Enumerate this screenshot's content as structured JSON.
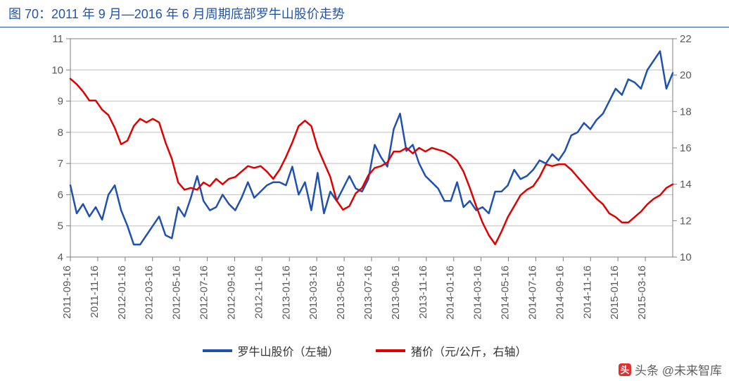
{
  "title_prefix": "图 70：",
  "title_main": "2011 年 9 月—2016 年 6 月周期底部罗牛山股价走势",
  "watermark": "头条 @未来智库",
  "chart": {
    "type": "line",
    "background_color": "#ffffff",
    "grid_color": "#bfbfbf",
    "axis_color": "#7f7f7f",
    "tick_font_size": 15,
    "tick_color": "#595959",
    "line_width": 2.5,
    "left_axis": {
      "min": 4,
      "max": 11,
      "ticks": [
        4,
        5,
        6,
        7,
        8,
        9,
        10,
        11
      ]
    },
    "right_axis": {
      "min": 10,
      "max": 22,
      "ticks": [
        10,
        12,
        14,
        16,
        18,
        20,
        22
      ]
    },
    "x_categories": [
      "2011-09-16",
      "2011-11-16",
      "2012-01-16",
      "2012-03-16",
      "2012-05-16",
      "2012-07-16",
      "2012-09-16",
      "2012-11-16",
      "2013-01-16",
      "2013-03-16",
      "2013-05-16",
      "2013-07-16",
      "2013-09-16",
      "2013-11-16",
      "2014-01-16",
      "2014-03-16",
      "2014-05-16",
      "2014-07-16",
      "2014-09-16",
      "2014-11-16",
      "2015-01-16",
      "2015-03-16"
    ],
    "series": [
      {
        "name": "罗牛山股价（左轴）",
        "axis": "left",
        "color": "#2050b0",
        "values": [
          6.3,
          5.4,
          5.7,
          5.3,
          5.6,
          5.2,
          6.0,
          6.3,
          5.5,
          5.0,
          4.4,
          4.4,
          4.7,
          5.0,
          5.3,
          4.7,
          4.6,
          5.6,
          5.3,
          5.9,
          6.6,
          5.8,
          5.5,
          5.6,
          6.0,
          5.7,
          5.5,
          5.9,
          6.4,
          5.9,
          6.1,
          6.3,
          6.4,
          6.4,
          6.3,
          6.9,
          6.0,
          6.4,
          5.5,
          6.7,
          5.4,
          6.1,
          5.8,
          6.2,
          6.6,
          6.2,
          6.1,
          6.5,
          7.6,
          7.2,
          6.9,
          8.1,
          8.6,
          7.4,
          7.6,
          7.0,
          6.6,
          6.4,
          6.2,
          5.8,
          5.8,
          6.4,
          5.6,
          5.8,
          5.5,
          5.6,
          5.4,
          6.1,
          6.1,
          6.3,
          6.8,
          6.5,
          6.6,
          6.8,
          7.1,
          7.0,
          7.3,
          7.1,
          7.4,
          7.9,
          8.0,
          8.3,
          8.1,
          8.4,
          8.6,
          9.0,
          9.4,
          9.2,
          9.7,
          9.6,
          9.4,
          10.0,
          10.3,
          10.6,
          9.4,
          9.9
        ]
      },
      {
        "name": "猪价（元/公斤，右轴）",
        "axis": "right",
        "color": "#e00000",
        "values": [
          19.8,
          19.5,
          19.1,
          18.6,
          18.6,
          18.1,
          17.8,
          17.1,
          16.2,
          16.4,
          17.2,
          17.6,
          17.4,
          17.6,
          17.4,
          16.3,
          15.4,
          14.1,
          13.7,
          13.8,
          13.7,
          14.1,
          13.9,
          14.3,
          14.0,
          14.3,
          14.4,
          14.7,
          15.0,
          14.9,
          15.0,
          14.7,
          14.3,
          14.8,
          15.5,
          16.3,
          17.2,
          17.5,
          17.2,
          16.0,
          15.2,
          14.4,
          13.1,
          12.6,
          12.8,
          13.5,
          13.8,
          14.5,
          14.9,
          15.0,
          15.2,
          15.8,
          15.8,
          16.0,
          15.7,
          16.0,
          15.8,
          16.0,
          15.9,
          15.8,
          15.6,
          15.3,
          14.7,
          13.8,
          12.8,
          11.9,
          11.2,
          10.7,
          11.4,
          12.2,
          12.8,
          13.4,
          13.7,
          13.9,
          14.4,
          15.1,
          15.0,
          15.1,
          15.1,
          14.8,
          14.4,
          14.0,
          13.6,
          13.2,
          12.9,
          12.4,
          12.2,
          11.9,
          11.9,
          12.2,
          12.5,
          12.9,
          13.2,
          13.4,
          13.8,
          14.0
        ]
      }
    ],
    "legend": {
      "position": "bottom",
      "font_size": 16,
      "font_color": "#333333"
    }
  }
}
